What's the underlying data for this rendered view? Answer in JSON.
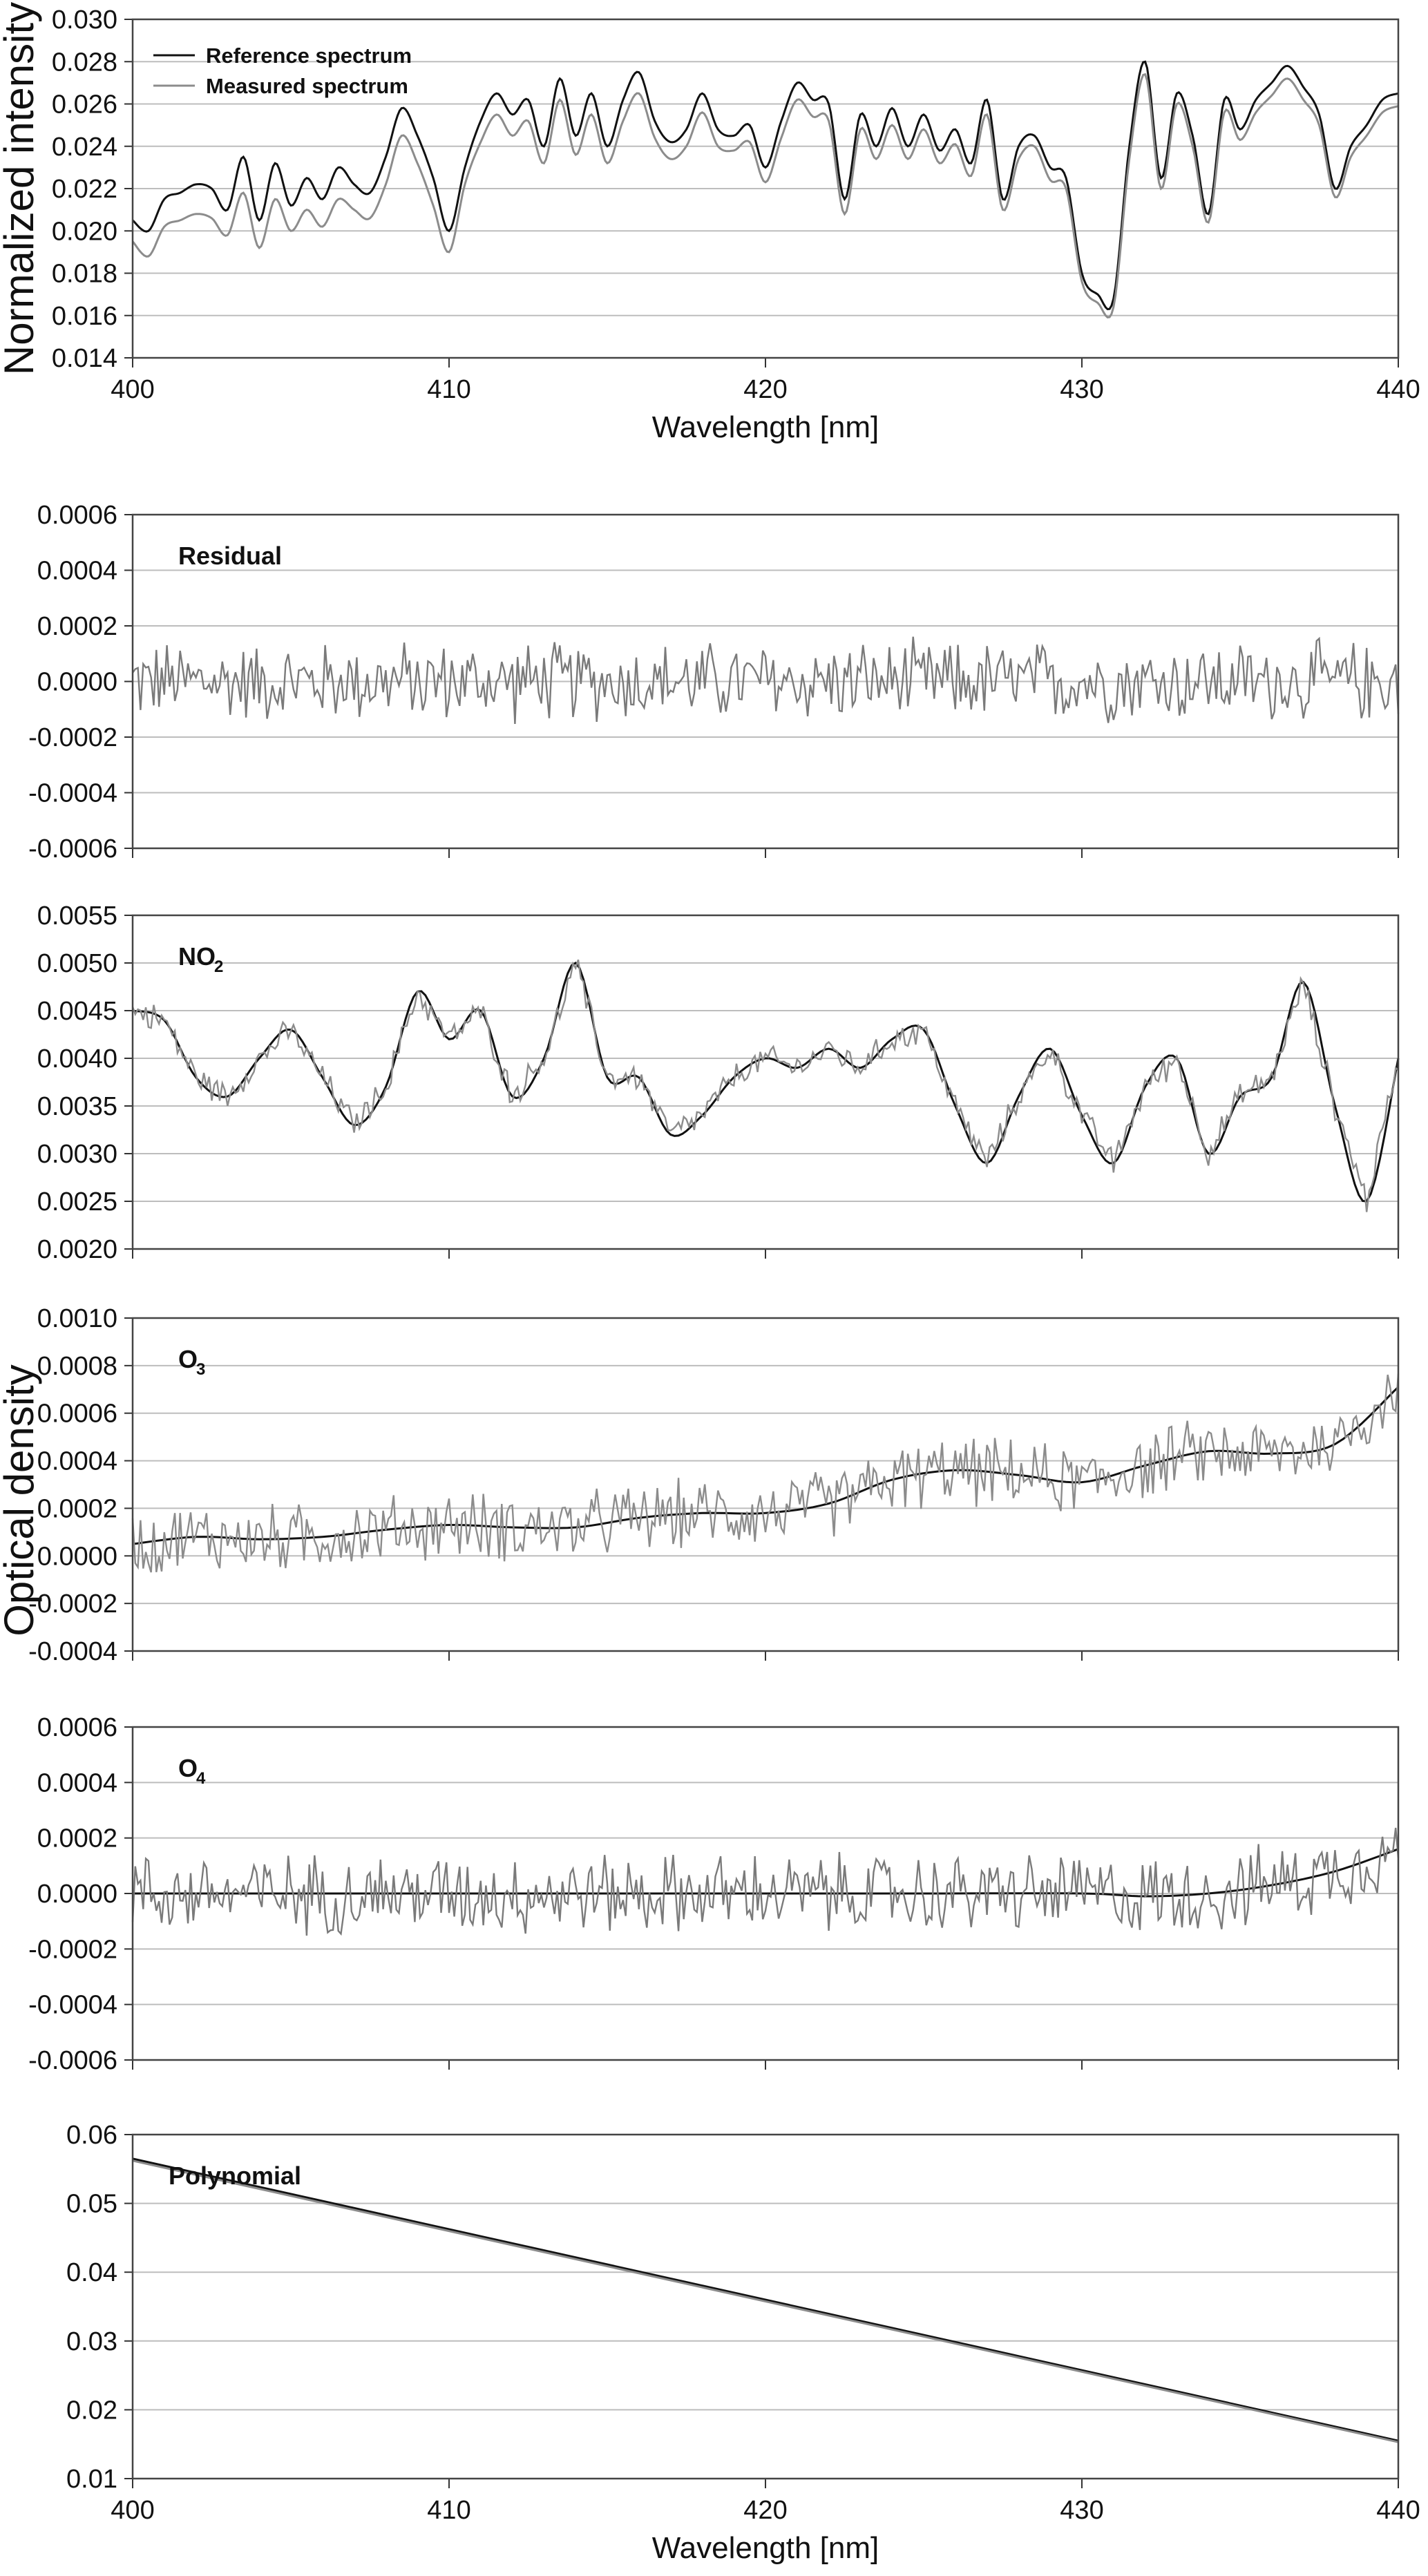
{
  "chart_data": [
    {
      "type": "line",
      "panel": "intensity",
      "ylabel": "Normalized intensity",
      "xlabel": "Wavelength [nm]",
      "xlim": [
        400,
        440
      ],
      "ylim": [
        0.014,
        0.03
      ],
      "yticks": [
        "0.014",
        "0.016",
        "0.018",
        "0.020",
        "0.022",
        "0.024",
        "0.026",
        "0.028",
        "0.030"
      ],
      "xticks": [
        "400",
        "410",
        "420",
        "430",
        "440"
      ],
      "grid": "horizontal",
      "legend": "top-left",
      "series": [
        {
          "name": "Reference spectrum",
          "color": "#111111",
          "x": [
            400,
            400.5,
            401,
            401.5,
            402,
            402.5,
            403,
            403.5,
            404,
            404.5,
            405,
            405.5,
            406,
            406.5,
            407,
            407.5,
            408,
            408.5,
            409,
            409.5,
            410,
            410.5,
            411,
            411.5,
            412,
            412.5,
            413,
            413.5,
            414,
            414.5,
            415,
            415.5,
            416,
            416.5,
            417,
            417.5,
            418,
            418.5,
            419,
            419.5,
            420,
            420.5,
            421,
            421.5,
            422,
            422.5,
            423,
            423.5,
            424,
            424.5,
            425,
            425.5,
            426,
            426.5,
            427,
            427.5,
            428,
            428.5,
            429,
            429.5,
            430,
            430.5,
            431,
            431.5,
            432,
            432.5,
            433,
            433.5,
            434,
            434.5,
            435,
            435.5,
            436,
            436.5,
            437,
            437.5,
            438,
            438.5,
            439,
            439.5,
            440
          ],
          "y": [
            0.0205,
            0.02,
            0.0215,
            0.0218,
            0.0222,
            0.022,
            0.021,
            0.0235,
            0.0205,
            0.0232,
            0.0212,
            0.0225,
            0.0215,
            0.023,
            0.0222,
            0.0218,
            0.0235,
            0.0258,
            0.0245,
            0.0225,
            0.02,
            0.023,
            0.0252,
            0.0265,
            0.0255,
            0.0262,
            0.024,
            0.0272,
            0.0245,
            0.0265,
            0.024,
            0.0262,
            0.0275,
            0.0252,
            0.0242,
            0.0248,
            0.0265,
            0.0248,
            0.0245,
            0.025,
            0.023,
            0.0252,
            0.027,
            0.0262,
            0.026,
            0.0215,
            0.0255,
            0.024,
            0.0258,
            0.024,
            0.0255,
            0.0238,
            0.0248,
            0.0232,
            0.0262,
            0.0215,
            0.024,
            0.0245,
            0.023,
            0.0225,
            0.018,
            0.017,
            0.0168,
            0.024,
            0.028,
            0.0225,
            0.0265,
            0.0245,
            0.0208,
            0.0262,
            0.0248,
            0.0262,
            0.027,
            0.0278,
            0.0268,
            0.0255,
            0.022,
            0.024,
            0.025,
            0.0262,
            0.0265
          ]
        },
        {
          "name": "Measured spectrum",
          "color": "#8c8c8c",
          "x": [
            400,
            400.5,
            401,
            401.5,
            402,
            402.5,
            403,
            403.5,
            404,
            404.5,
            405,
            405.5,
            406,
            406.5,
            407,
            407.5,
            408,
            408.5,
            409,
            409.5,
            410,
            410.5,
            411,
            411.5,
            412,
            412.5,
            413,
            413.5,
            414,
            414.5,
            415,
            415.5,
            416,
            416.5,
            417,
            417.5,
            418,
            418.5,
            419,
            419.5,
            420,
            420.5,
            421,
            421.5,
            422,
            422.5,
            423,
            423.5,
            424,
            424.5,
            425,
            425.5,
            426,
            426.5,
            427,
            427.5,
            428,
            428.5,
            429,
            429.5,
            430,
            430.5,
            431,
            431.5,
            432,
            432.5,
            433,
            433.5,
            434,
            434.5,
            435,
            435.5,
            436,
            436.5,
            437,
            437.5,
            438,
            438.5,
            439,
            439.5,
            440
          ],
          "y": [
            0.0195,
            0.0188,
            0.0202,
            0.0205,
            0.0208,
            0.0206,
            0.0198,
            0.0218,
            0.0192,
            0.0215,
            0.02,
            0.021,
            0.0202,
            0.0215,
            0.021,
            0.0206,
            0.0222,
            0.0245,
            0.0232,
            0.0212,
            0.019,
            0.0222,
            0.0242,
            0.0255,
            0.0245,
            0.0252,
            0.0232,
            0.0262,
            0.0236,
            0.0255,
            0.0232,
            0.0252,
            0.0265,
            0.0244,
            0.0234,
            0.024,
            0.0256,
            0.024,
            0.0238,
            0.0242,
            0.0223,
            0.0244,
            0.0262,
            0.0254,
            0.0252,
            0.0208,
            0.0248,
            0.0234,
            0.025,
            0.0234,
            0.0248,
            0.0232,
            0.0241,
            0.0226,
            0.0255,
            0.021,
            0.0234,
            0.024,
            0.0224,
            0.022,
            0.0176,
            0.0166,
            0.0164,
            0.0234,
            0.0274,
            0.022,
            0.026,
            0.024,
            0.0204,
            0.0256,
            0.0243,
            0.0256,
            0.0264,
            0.0272,
            0.0262,
            0.025,
            0.0216,
            0.0235,
            0.0245,
            0.0256,
            0.0259
          ]
        }
      ]
    },
    {
      "type": "line",
      "panel": "residual",
      "label": "Residual",
      "xlim": [
        400,
        440
      ],
      "ylim": [
        -0.0006,
        0.0006
      ],
      "yticks": [
        "-0.0006",
        "-0.0004",
        "-0.0002",
        "0.0000",
        "0.0002",
        "0.0004",
        "0.0006"
      ],
      "grid": "horizontal",
      "series": [
        {
          "color": "#7a7a7a",
          "amplitude": 0.00012,
          "mean": 0.0,
          "trend": []
        }
      ]
    },
    {
      "type": "line",
      "panel": "no2",
      "label": "NO",
      "label_sub": "2",
      "xlim": [
        400,
        440
      ],
      "ylim": [
        0.002,
        0.0055
      ],
      "yticks": [
        "0.0020",
        "0.0025",
        "0.0030",
        "0.0035",
        "0.0040",
        "0.0045",
        "0.0050",
        "0.0055"
      ],
      "grid": "horizontal",
      "series": [
        {
          "color": "#111111",
          "x": [
            400,
            401,
            402,
            403,
            404,
            405,
            406,
            407,
            408,
            409,
            410,
            411,
            412,
            413,
            414,
            415,
            416,
            417,
            418,
            419,
            420,
            421,
            422,
            423,
            424,
            425,
            426,
            427,
            428,
            429,
            430,
            431,
            432,
            433,
            434,
            435,
            436,
            437,
            438,
            439,
            440
          ],
          "y": [
            0.0045,
            0.0044,
            0.0038,
            0.0036,
            0.004,
            0.0043,
            0.0038,
            0.0033,
            0.0037,
            0.0047,
            0.0042,
            0.0045,
            0.0036,
            0.004,
            0.005,
            0.0038,
            0.0038,
            0.0032,
            0.0034,
            0.0038,
            0.004,
            0.0039,
            0.0041,
            0.0039,
            0.0042,
            0.0043,
            0.0035,
            0.0029,
            0.0036,
            0.0041,
            0.0034,
            0.0029,
            0.0037,
            0.004,
            0.003,
            0.0036,
            0.0038,
            0.0048,
            0.0035,
            0.0025,
            0.004
          ]
        },
        {
          "color": "#8c8c8c",
          "amplitude": 0.00012,
          "mean": 0.0,
          "trend": []
        }
      ]
    },
    {
      "type": "line",
      "panel": "o3",
      "label": "O",
      "label_sub": "3",
      "xlim": [
        400,
        440
      ],
      "ylim": [
        -0.0004,
        0.001
      ],
      "yticks": [
        "-0.0004",
        "-0.0002",
        "0.0000",
        "0.0002",
        "0.0004",
        "0.0006",
        "0.0008",
        "0.0010"
      ],
      "grid": "horizontal",
      "series": [
        {
          "color": "#111111",
          "x": [
            400,
            402,
            404,
            406,
            408,
            410,
            412,
            414,
            416,
            418,
            420,
            422,
            424,
            426,
            428,
            430,
            432,
            434,
            436,
            438,
            440
          ],
          "y": [
            5e-05,
            8e-05,
            7e-05,
            8e-05,
            0.00011,
            0.00013,
            0.00012,
            0.00012,
            0.00016,
            0.00018,
            0.00018,
            0.00022,
            0.00032,
            0.00036,
            0.00034,
            0.00031,
            0.00038,
            0.00044,
            0.00043,
            0.00047,
            0.00071
          ]
        },
        {
          "color": "#8c8c8c",
          "amplitude": 0.00012,
          "mean": 0.0,
          "trend": []
        }
      ]
    },
    {
      "type": "line",
      "panel": "o4",
      "label": "O",
      "label_sub": "4",
      "xlim": [
        400,
        440
      ],
      "ylim": [
        -0.0006,
        0.0006
      ],
      "yticks": [
        "-0.0006",
        "-0.0004",
        "-0.0002",
        "0.0000",
        "0.0002",
        "0.0004",
        "0.0006"
      ],
      "grid": "horizontal",
      "series": [
        {
          "color": "#111111",
          "x": [
            400,
            405,
            410,
            415,
            420,
            425,
            430,
            432,
            434,
            436,
            438,
            440
          ],
          "y": [
            0.0,
            0.0,
            0.0,
            0.0,
            0.0,
            0.0,
            0.0,
            -1e-05,
            0.0,
            3e-05,
            8e-05,
            0.00016
          ]
        },
        {
          "color": "#7a7a7a",
          "amplitude": 0.00012,
          "mean": 0.0,
          "trend": []
        }
      ]
    },
    {
      "type": "line",
      "panel": "polynomial",
      "label": "Polynomial",
      "xlabel": "Wavelength [nm]",
      "xlim": [
        400,
        440
      ],
      "ylim": [
        0.01,
        0.06
      ],
      "yticks": [
        "0.01",
        "0.02",
        "0.03",
        "0.04",
        "0.05",
        "0.06"
      ],
      "xticks": [
        "400",
        "410",
        "420",
        "430",
        "440"
      ],
      "grid": "horizontal",
      "series": [
        {
          "color": "#111111",
          "x": [
            400,
            440
          ],
          "y": [
            0.0565,
            0.0155
          ]
        },
        {
          "color": "#8c8c8c",
          "x": [
            400,
            440
          ],
          "y": [
            0.0562,
            0.0153
          ]
        }
      ]
    }
  ],
  "shared_ylabel": "Optical density"
}
